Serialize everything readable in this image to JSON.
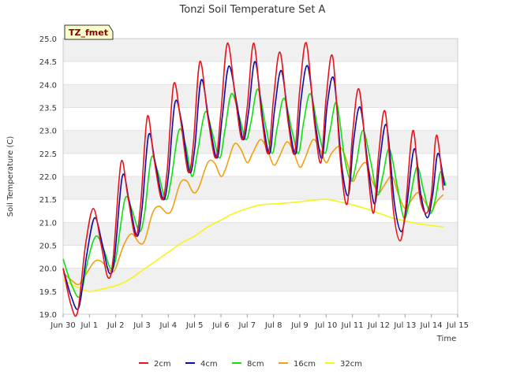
{
  "chart_data": {
    "type": "line",
    "title": "Tonzi Soil Temperature Set A",
    "xlabel": "Time",
    "ylabel": "Soil Temperature (C)",
    "xlim": [
      0,
      15
    ],
    "ylim": [
      19.0,
      25.0
    ],
    "x_ticks": [
      {
        "x": 0,
        "label": "Jun 30"
      },
      {
        "x": 1,
        "label": "Jul 1"
      },
      {
        "x": 2,
        "label": "Jul 2"
      },
      {
        "x": 3,
        "label": "Jul 3"
      },
      {
        "x": 4,
        "label": "Jul 4"
      },
      {
        "x": 5,
        "label": "Jul 5"
      },
      {
        "x": 6,
        "label": "Jul 6"
      },
      {
        "x": 7,
        "label": "Jul 7"
      },
      {
        "x": 8,
        "label": "Jul 8"
      },
      {
        "x": 9,
        "label": "Jul 9"
      },
      {
        "x": 10,
        "label": "Jul 10"
      },
      {
        "x": 11,
        "label": "Jul 11"
      },
      {
        "x": 12,
        "label": "Jul 12"
      },
      {
        "x": 13,
        "label": "Jul 13"
      },
      {
        "x": 14,
        "label": "Jul 14"
      },
      {
        "x": 15,
        "label": "Jul 15"
      }
    ],
    "y_ticks": [
      "19.0",
      "19.5",
      "20.0",
      "20.5",
      "21.0",
      "21.5",
      "22.0",
      "22.5",
      "23.0",
      "23.5",
      "24.0",
      "24.5",
      "25.0"
    ],
    "grid": "horizontal alternating bands",
    "legend_position": "bottom",
    "annotation": "TZ_fmet",
    "series": [
      {
        "name": "2cm",
        "color": "#e8141d",
        "points": [
          [
            0.0,
            20.0
          ],
          [
            0.3,
            19.2
          ],
          [
            0.55,
            19.05
          ],
          [
            0.85,
            20.5
          ],
          [
            1.15,
            21.3
          ],
          [
            1.45,
            20.5
          ],
          [
            1.7,
            19.8
          ],
          [
            1.9,
            20.2
          ],
          [
            2.2,
            22.3
          ],
          [
            2.45,
            21.6
          ],
          [
            2.75,
            20.7
          ],
          [
            2.95,
            21.4
          ],
          [
            3.2,
            23.3
          ],
          [
            3.45,
            22.4
          ],
          [
            3.75,
            21.5
          ],
          [
            3.95,
            22.1
          ],
          [
            4.2,
            24.0
          ],
          [
            4.45,
            23.3
          ],
          [
            4.75,
            22.1
          ],
          [
            4.95,
            22.7
          ],
          [
            5.2,
            24.5
          ],
          [
            5.5,
            23.3
          ],
          [
            5.8,
            22.4
          ],
          [
            6.0,
            23.4
          ],
          [
            6.25,
            24.9
          ],
          [
            6.55,
            23.7
          ],
          [
            6.8,
            22.8
          ],
          [
            7.0,
            23.5
          ],
          [
            7.25,
            24.9
          ],
          [
            7.55,
            23.3
          ],
          [
            7.8,
            22.5
          ],
          [
            8.0,
            23.7
          ],
          [
            8.25,
            24.7
          ],
          [
            8.55,
            23.2
          ],
          [
            8.8,
            22.5
          ],
          [
            9.0,
            23.9
          ],
          [
            9.25,
            24.9
          ],
          [
            9.55,
            23.2
          ],
          [
            9.8,
            22.3
          ],
          [
            10.0,
            23.7
          ],
          [
            10.25,
            24.6
          ],
          [
            10.55,
            22.3
          ],
          [
            10.8,
            21.4
          ],
          [
            11.0,
            22.9
          ],
          [
            11.25,
            23.9
          ],
          [
            11.55,
            22.3
          ],
          [
            11.8,
            21.2
          ],
          [
            12.0,
            22.5
          ],
          [
            12.25,
            23.4
          ],
          [
            12.55,
            21.3
          ],
          [
            12.8,
            20.6
          ],
          [
            13.0,
            21.2
          ],
          [
            13.3,
            23.0
          ],
          [
            13.55,
            21.6
          ],
          [
            13.8,
            21.2
          ],
          [
            14.0,
            21.6
          ],
          [
            14.2,
            22.9
          ],
          [
            14.45,
            21.7
          ]
        ]
      },
      {
        "name": "4cm",
        "color": "#0c0ca8",
        "points": [
          [
            0.0,
            20.0
          ],
          [
            0.3,
            19.4
          ],
          [
            0.6,
            19.15
          ],
          [
            0.9,
            20.3
          ],
          [
            1.2,
            21.1
          ],
          [
            1.5,
            20.5
          ],
          [
            1.75,
            19.9
          ],
          [
            1.95,
            20.2
          ],
          [
            2.25,
            22.0
          ],
          [
            2.5,
            21.5
          ],
          [
            2.8,
            20.7
          ],
          [
            3.0,
            21.3
          ],
          [
            3.25,
            22.9
          ],
          [
            3.5,
            22.3
          ],
          [
            3.8,
            21.5
          ],
          [
            4.0,
            22.0
          ],
          [
            4.25,
            23.6
          ],
          [
            4.5,
            23.2
          ],
          [
            4.8,
            22.1
          ],
          [
            5.0,
            22.6
          ],
          [
            5.25,
            24.1
          ],
          [
            5.55,
            23.2
          ],
          [
            5.85,
            22.4
          ],
          [
            6.05,
            23.3
          ],
          [
            6.3,
            24.4
          ],
          [
            6.6,
            23.6
          ],
          [
            6.85,
            22.8
          ],
          [
            7.05,
            23.4
          ],
          [
            7.3,
            24.5
          ],
          [
            7.6,
            23.2
          ],
          [
            7.85,
            22.5
          ],
          [
            8.05,
            23.5
          ],
          [
            8.3,
            24.3
          ],
          [
            8.6,
            23.1
          ],
          [
            8.85,
            22.5
          ],
          [
            9.05,
            23.7
          ],
          [
            9.3,
            24.4
          ],
          [
            9.6,
            23.1
          ],
          [
            9.85,
            22.4
          ],
          [
            10.05,
            23.6
          ],
          [
            10.3,
            24.1
          ],
          [
            10.6,
            22.2
          ],
          [
            10.85,
            21.6
          ],
          [
            11.05,
            22.8
          ],
          [
            11.3,
            23.5
          ],
          [
            11.6,
            22.2
          ],
          [
            11.85,
            21.4
          ],
          [
            12.05,
            22.4
          ],
          [
            12.3,
            23.1
          ],
          [
            12.6,
            21.4
          ],
          [
            12.85,
            20.8
          ],
          [
            13.05,
            21.3
          ],
          [
            13.35,
            22.6
          ],
          [
            13.6,
            21.6
          ],
          [
            13.85,
            21.1
          ],
          [
            14.05,
            21.6
          ],
          [
            14.25,
            22.5
          ],
          [
            14.5,
            21.8
          ]
        ]
      },
      {
        "name": "8cm",
        "color": "#10e010",
        "points": [
          [
            0.0,
            20.2
          ],
          [
            0.35,
            19.6
          ],
          [
            0.65,
            19.4
          ],
          [
            0.95,
            20.2
          ],
          [
            1.25,
            20.7
          ],
          [
            1.55,
            20.4
          ],
          [
            1.8,
            20.0
          ],
          [
            2.0,
            20.2
          ],
          [
            2.35,
            21.5
          ],
          [
            2.6,
            21.3
          ],
          [
            2.9,
            20.8
          ],
          [
            3.1,
            21.2
          ],
          [
            3.35,
            22.4
          ],
          [
            3.6,
            22.1
          ],
          [
            3.9,
            21.5
          ],
          [
            4.1,
            21.9
          ],
          [
            4.4,
            23.0
          ],
          [
            4.65,
            22.7
          ],
          [
            4.9,
            22.0
          ],
          [
            5.1,
            22.5
          ],
          [
            5.4,
            23.4
          ],
          [
            5.65,
            23.0
          ],
          [
            5.95,
            22.4
          ],
          [
            6.15,
            23.0
          ],
          [
            6.4,
            23.8
          ],
          [
            6.7,
            23.3
          ],
          [
            6.95,
            22.8
          ],
          [
            7.15,
            23.2
          ],
          [
            7.4,
            23.9
          ],
          [
            7.7,
            23.1
          ],
          [
            7.95,
            22.5
          ],
          [
            8.15,
            23.1
          ],
          [
            8.4,
            23.7
          ],
          [
            8.7,
            23.0
          ],
          [
            8.95,
            22.5
          ],
          [
            9.15,
            23.2
          ],
          [
            9.4,
            23.8
          ],
          [
            9.7,
            23.0
          ],
          [
            9.95,
            22.5
          ],
          [
            10.15,
            23.0
          ],
          [
            10.4,
            23.6
          ],
          [
            10.7,
            22.4
          ],
          [
            10.95,
            21.9
          ],
          [
            11.15,
            22.3
          ],
          [
            11.4,
            23.0
          ],
          [
            11.7,
            22.3
          ],
          [
            11.95,
            21.6
          ],
          [
            12.15,
            22.0
          ],
          [
            12.4,
            22.6
          ],
          [
            12.7,
            21.8
          ],
          [
            12.95,
            21.1
          ],
          [
            13.15,
            21.4
          ],
          [
            13.45,
            22.2
          ],
          [
            13.7,
            21.7
          ],
          [
            13.95,
            21.2
          ],
          [
            14.15,
            21.5
          ],
          [
            14.35,
            22.1
          ],
          [
            14.55,
            21.8
          ]
        ]
      },
      {
        "name": "16cm",
        "color": "#f0a010",
        "points": [
          [
            0.0,
            19.9
          ],
          [
            0.3,
            19.75
          ],
          [
            0.6,
            19.65
          ],
          [
            0.9,
            19.9
          ],
          [
            1.2,
            20.15
          ],
          [
            1.45,
            20.15
          ],
          [
            1.7,
            20.0
          ],
          [
            1.95,
            19.95
          ],
          [
            2.3,
            20.5
          ],
          [
            2.6,
            20.75
          ],
          [
            2.9,
            20.55
          ],
          [
            3.1,
            20.6
          ],
          [
            3.4,
            21.2
          ],
          [
            3.65,
            21.35
          ],
          [
            3.95,
            21.2
          ],
          [
            4.15,
            21.3
          ],
          [
            4.45,
            21.85
          ],
          [
            4.7,
            21.9
          ],
          [
            4.95,
            21.65
          ],
          [
            5.15,
            21.75
          ],
          [
            5.5,
            22.3
          ],
          [
            5.75,
            22.3
          ],
          [
            6.0,
            22.0
          ],
          [
            6.2,
            22.2
          ],
          [
            6.5,
            22.7
          ],
          [
            6.75,
            22.6
          ],
          [
            7.0,
            22.3
          ],
          [
            7.2,
            22.5
          ],
          [
            7.5,
            22.8
          ],
          [
            7.75,
            22.6
          ],
          [
            8.0,
            22.25
          ],
          [
            8.2,
            22.4
          ],
          [
            8.5,
            22.75
          ],
          [
            8.75,
            22.55
          ],
          [
            9.0,
            22.2
          ],
          [
            9.2,
            22.4
          ],
          [
            9.5,
            22.8
          ],
          [
            9.75,
            22.6
          ],
          [
            10.0,
            22.3
          ],
          [
            10.2,
            22.5
          ],
          [
            10.5,
            22.65
          ],
          [
            10.75,
            22.4
          ],
          [
            11.0,
            21.9
          ],
          [
            11.2,
            22.1
          ],
          [
            11.5,
            22.3
          ],
          [
            11.75,
            21.9
          ],
          [
            12.0,
            21.65
          ],
          [
            12.2,
            21.8
          ],
          [
            12.5,
            22.0
          ],
          [
            12.75,
            21.6
          ],
          [
            13.0,
            21.3
          ],
          [
            13.2,
            21.45
          ],
          [
            13.5,
            21.65
          ],
          [
            13.75,
            21.45
          ],
          [
            14.0,
            21.25
          ],
          [
            14.2,
            21.45
          ],
          [
            14.45,
            21.6
          ]
        ]
      },
      {
        "name": "32cm",
        "color": "#f5f517",
        "points": [
          [
            0.0,
            19.75
          ],
          [
            0.5,
            19.6
          ],
          [
            1.0,
            19.5
          ],
          [
            1.5,
            19.55
          ],
          [
            2.0,
            19.62
          ],
          [
            2.5,
            19.75
          ],
          [
            3.0,
            19.95
          ],
          [
            3.5,
            20.15
          ],
          [
            4.0,
            20.35
          ],
          [
            4.5,
            20.55
          ],
          [
            5.0,
            20.7
          ],
          [
            5.5,
            20.9
          ],
          [
            6.0,
            21.05
          ],
          [
            6.5,
            21.2
          ],
          [
            7.0,
            21.3
          ],
          [
            7.5,
            21.38
          ],
          [
            8.0,
            21.4
          ],
          [
            8.5,
            21.42
          ],
          [
            9.0,
            21.45
          ],
          [
            9.5,
            21.48
          ],
          [
            10.0,
            21.5
          ],
          [
            10.5,
            21.45
          ],
          [
            11.0,
            21.38
          ],
          [
            11.5,
            21.3
          ],
          [
            12.0,
            21.2
          ],
          [
            12.5,
            21.1
          ],
          [
            13.0,
            21.03
          ],
          [
            13.5,
            20.97
          ],
          [
            14.0,
            20.93
          ],
          [
            14.45,
            20.9
          ]
        ]
      }
    ]
  }
}
